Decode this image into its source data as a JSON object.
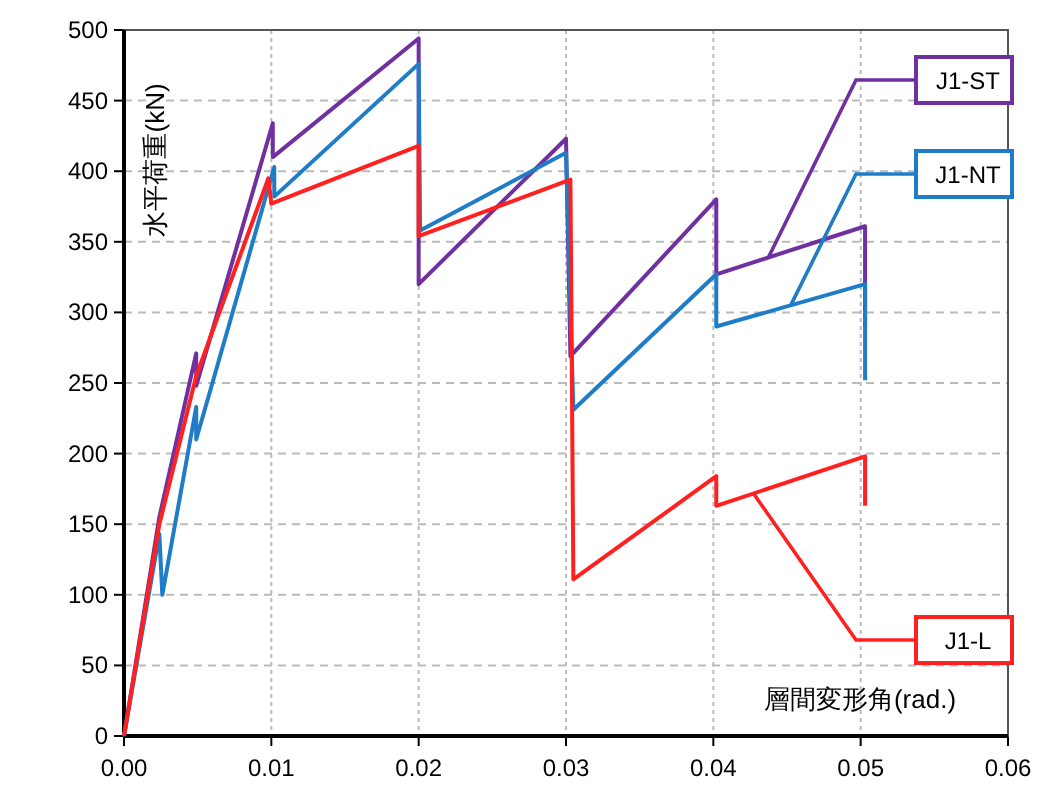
{
  "chart_data": {
    "type": "line",
    "xlabel": "層間変形角(rad.)",
    "ylabel": "水平荷重(kN)",
    "xlim": [
      0,
      0.06
    ],
    "ylim": [
      0,
      500
    ],
    "xticks": [
      {
        "value": 0,
        "label": "0.00"
      },
      {
        "value": 0.01,
        "label": "0.01"
      },
      {
        "value": 0.02,
        "label": "0.02"
      },
      {
        "value": 0.03,
        "label": "0.03"
      },
      {
        "value": 0.04,
        "label": "0.04"
      },
      {
        "value": 0.05,
        "label": "0.05"
      },
      {
        "value": 0.06,
        "label": "0.06"
      }
    ],
    "yticks": [
      0,
      50,
      100,
      150,
      200,
      250,
      300,
      350,
      400,
      450,
      500
    ],
    "grid": true,
    "marker": "none",
    "line_style": "solid",
    "series": [
      {
        "name": "J1-ST",
        "color": "#7030a0",
        "x": [
          0,
          0.0024,
          0.0049,
          0.0049,
          0.0101,
          0.0101,
          0.02,
          0.02,
          0.03,
          0.0303,
          0.0402,
          0.0402,
          0.0503,
          0.0503
        ],
        "values": [
          0,
          155,
          271,
          248,
          434,
          410,
          494,
          320,
          423,
          269,
          380,
          327,
          361,
          290
        ]
      },
      {
        "name": "J1-NT",
        "color": "#1f7dc8",
        "x": [
          0,
          0.0024,
          0.0026,
          0.0049,
          0.0049,
          0.0102,
          0.0102,
          0.02,
          0.0201,
          0.03,
          0.0305,
          0.0402,
          0.0402,
          0.0503,
          0.0503
        ],
        "values": [
          0,
          143,
          100,
          233,
          210,
          403,
          382,
          476,
          358,
          413,
          231,
          327,
          290,
          320,
          252
        ]
      },
      {
        "name": "J1-L",
        "color": "#ff2020",
        "x": [
          0,
          0.0024,
          0.0049,
          0.0098,
          0.01,
          0.02,
          0.02,
          0.0303,
          0.0305,
          0.0402,
          0.0402,
          0.0503,
          0.0503
        ],
        "values": [
          0,
          150,
          255,
          395,
          377,
          418,
          354,
          394,
          111,
          184,
          163,
          198,
          163
        ]
      }
    ]
  }
}
